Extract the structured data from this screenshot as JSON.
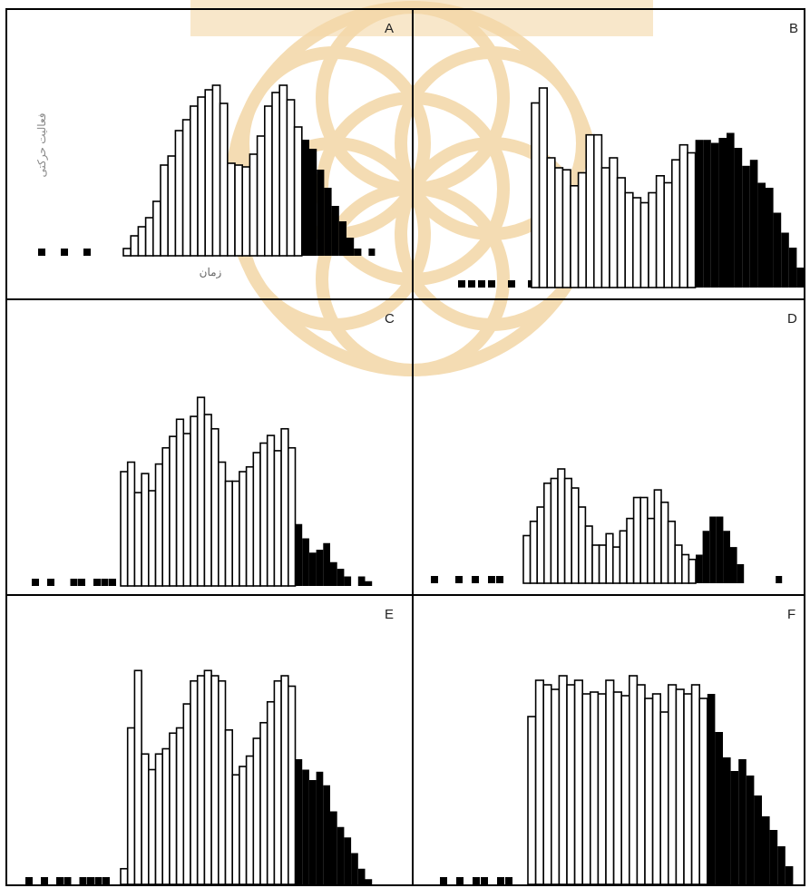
{
  "colors": {
    "bar_outline": "#000000",
    "open_fill": "#ffffff",
    "closed_fill": "#000000",
    "watermark": "#f3d7a6"
  },
  "watermark": {
    "icon": "flower-of-life-watermark"
  },
  "chart_data": [
    {
      "panel": "A",
      "type": "bar",
      "ylabel": "فعالیت حرکتی",
      "xlabel": "زمان",
      "ylim": [
        0,
        200
      ],
      "leading_off": [
        1,
        1,
        1,
        0,
        1,
        1
      ],
      "values": [
        8,
        22,
        32,
        42,
        60,
        100,
        110,
        138,
        150,
        165,
        175,
        183,
        188,
        168,
        102,
        100,
        98,
        112,
        132,
        165,
        180,
        188,
        172,
        142,
        128,
        118,
        95,
        75,
        55,
        38,
        20,
        8
      ],
      "closed_from": 24,
      "trailing_off": [
        1
      ]
    },
    {
      "panel": "B",
      "type": "bar",
      "ylim": [
        0,
        200
      ],
      "leading_off": [
        1,
        1,
        1,
        1,
        0,
        1,
        0,
        1
      ],
      "values": [
        185,
        200,
        130,
        120,
        118,
        102,
        115,
        153,
        153,
        120,
        130,
        110,
        95,
        90,
        85,
        95,
        112,
        105,
        128,
        143,
        135
      ],
      "closed_values": [
        148,
        148,
        145,
        150,
        155,
        140,
        122,
        128,
        105,
        100,
        75,
        55,
        40,
        20
      ],
      "trailing_off": []
    },
    {
      "panel": "C",
      "type": "bar",
      "ylim": [
        0,
        200
      ],
      "leading_off": [
        1,
        0,
        1,
        0,
        0,
        1,
        1,
        0,
        1,
        1,
        1
      ],
      "values": [
        120,
        130,
        98,
        118,
        100,
        128,
        145,
        157,
        175,
        160,
        178,
        198,
        180,
        165,
        130,
        110,
        110,
        120,
        125,
        140,
        150,
        158,
        142,
        165,
        145
      ],
      "closed_values": [
        65,
        50,
        35,
        38,
        45,
        25,
        18,
        10,
        0,
        10,
        5
      ],
      "trailing_off": []
    },
    {
      "panel": "D",
      "type": "bar",
      "ylim": [
        0,
        200
      ],
      "leading_off": [
        1,
        0,
        0,
        1,
        0,
        1,
        0,
        1,
        1
      ],
      "values": [
        50,
        65,
        80,
        105,
        110,
        120,
        110,
        100,
        80,
        60,
        40,
        40,
        52,
        38,
        55,
        68,
        90,
        90,
        68,
        98,
        85,
        65,
        40,
        30,
        25
      ],
      "closed_values": [
        30,
        55,
        70,
        70,
        55,
        38,
        20
      ],
      "trailing_off": [
        0,
        0,
        0,
        1
      ]
    },
    {
      "panel": "E",
      "type": "bar",
      "ylim": [
        0,
        200
      ],
      "leading_off": [
        1,
        0,
        1,
        0,
        1,
        1,
        0,
        1,
        1,
        1,
        1
      ],
      "values": [
        15,
        150,
        205,
        125,
        110,
        125,
        130,
        145,
        150,
        173,
        195,
        200,
        205,
        200,
        195,
        148,
        105,
        113,
        123,
        140,
        155,
        175,
        195,
        200,
        190
      ],
      "closed_values": [
        120,
        110,
        100,
        108,
        95,
        70,
        55,
        45,
        30,
        15,
        5
      ],
      "trailing_off": []
    },
    {
      "panel": "F",
      "type": "bar",
      "ylim": [
        0,
        230
      ],
      "leading_off": [
        1,
        0,
        1,
        0,
        1,
        1,
        0,
        1,
        1
      ],
      "values": [
        185,
        225,
        220,
        215,
        230,
        220,
        225,
        210,
        212,
        210,
        225,
        212,
        208,
        230,
        220,
        205,
        210,
        190,
        220,
        215,
        210,
        220,
        205
      ],
      "closed_values": [
        210,
        168,
        140,
        125,
        138,
        120,
        98,
        75,
        60,
        42,
        20
      ],
      "trailing_off": []
    }
  ]
}
